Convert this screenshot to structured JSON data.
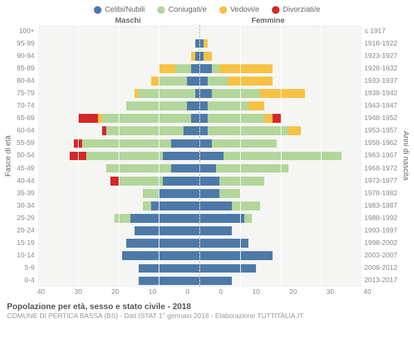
{
  "chart": {
    "type": "population-pyramid",
    "background_color": "#f5f5f3",
    "grid_color": "#ffffff",
    "axis_color": "#888888",
    "center_line_color": "#aaaaaa",
    "legend": [
      {
        "label": "Celibi/Nubili",
        "color": "#4d79a8"
      },
      {
        "label": "Coniugati/e",
        "color": "#b3d69b"
      },
      {
        "label": "Vedovi/e",
        "color": "#f6c244"
      },
      {
        "label": "Divorziati/e",
        "color": "#d62728"
      }
    ],
    "header_left": "Maschi",
    "header_right": "Femmine",
    "y_left_label": "Fasce di età",
    "y_right_label": "Anni di nascita",
    "age_groups": [
      "100+",
      "95-99",
      "90-94",
      "85-89",
      "80-84",
      "75-79",
      "70-74",
      "65-69",
      "60-64",
      "55-59",
      "50-54",
      "45-49",
      "40-44",
      "35-39",
      "30-34",
      "25-29",
      "20-24",
      "15-19",
      "10-14",
      "5-9",
      "0-4"
    ],
    "birth_years": [
      "≤ 1917",
      "1918-1922",
      "1923-1927",
      "1928-1932",
      "1933-1937",
      "1938-1942",
      "1943-1947",
      "1948-1952",
      "1953-1957",
      "1958-1962",
      "1963-1967",
      "1968-1972",
      "1973-1977",
      "1978-1982",
      "1983-1987",
      "1988-1992",
      "1993-1997",
      "1998-2002",
      "2003-2007",
      "2008-2012",
      "2013-2017"
    ],
    "x_max": 40,
    "x_ticks": [
      40,
      30,
      20,
      10,
      0,
      0,
      10,
      20,
      30,
      40
    ],
    "bars": {
      "male": [
        {
          "c": 0,
          "m": 0,
          "w": 0,
          "d": 0
        },
        {
          "c": 1,
          "m": 0,
          "w": 0,
          "d": 0
        },
        {
          "c": 1,
          "m": 0,
          "w": 1,
          "d": 0
        },
        {
          "c": 2,
          "m": 4,
          "w": 4,
          "d": 0
        },
        {
          "c": 3,
          "m": 7,
          "w": 2,
          "d": 0
        },
        {
          "c": 1,
          "m": 14,
          "w": 1,
          "d": 0
        },
        {
          "c": 3,
          "m": 15,
          "w": 0,
          "d": 0
        },
        {
          "c": 2,
          "m": 22,
          "w": 1,
          "d": 5
        },
        {
          "c": 4,
          "m": 19,
          "w": 0,
          "d": 1
        },
        {
          "c": 7,
          "m": 22,
          "w": 0,
          "d": 2
        },
        {
          "c": 9,
          "m": 19,
          "w": 0,
          "d": 4
        },
        {
          "c": 7,
          "m": 16,
          "w": 0,
          "d": 0
        },
        {
          "c": 9,
          "m": 11,
          "w": 0,
          "d": 2
        },
        {
          "c": 10,
          "m": 4,
          "w": 0,
          "d": 0
        },
        {
          "c": 12,
          "m": 2,
          "w": 0,
          "d": 0
        },
        {
          "c": 17,
          "m": 4,
          "w": 0,
          "d": 0
        },
        {
          "c": 16,
          "m": 0,
          "w": 0,
          "d": 0
        },
        {
          "c": 18,
          "m": 0,
          "w": 0,
          "d": 0
        },
        {
          "c": 19,
          "m": 0,
          "w": 0,
          "d": 0
        },
        {
          "c": 15,
          "m": 0,
          "w": 0,
          "d": 0
        },
        {
          "c": 15,
          "m": 0,
          "w": 0,
          "d": 0
        }
      ],
      "female": [
        {
          "c": 0,
          "m": 0,
          "w": 0,
          "d": 0
        },
        {
          "c": 1,
          "m": 0,
          "w": 1,
          "d": 0
        },
        {
          "c": 1,
          "m": 0,
          "w": 2,
          "d": 0
        },
        {
          "c": 3,
          "m": 2,
          "w": 13,
          "d": 0
        },
        {
          "c": 2,
          "m": 5,
          "w": 11,
          "d": 0
        },
        {
          "c": 3,
          "m": 12,
          "w": 11,
          "d": 0
        },
        {
          "c": 2,
          "m": 10,
          "w": 4,
          "d": 0
        },
        {
          "c": 2,
          "m": 14,
          "w": 2,
          "d": 2
        },
        {
          "c": 2,
          "m": 20,
          "w": 3,
          "d": 0
        },
        {
          "c": 3,
          "m": 16,
          "w": 0,
          "d": 0
        },
        {
          "c": 6,
          "m": 29,
          "w": 0,
          "d": 0
        },
        {
          "c": 4,
          "m": 18,
          "w": 0,
          "d": 0
        },
        {
          "c": 5,
          "m": 11,
          "w": 0,
          "d": 0
        },
        {
          "c": 5,
          "m": 5,
          "w": 0,
          "d": 0
        },
        {
          "c": 8,
          "m": 7,
          "w": 0,
          "d": 0
        },
        {
          "c": 11,
          "m": 2,
          "w": 0,
          "d": 0
        },
        {
          "c": 8,
          "m": 0,
          "w": 0,
          "d": 0
        },
        {
          "c": 12,
          "m": 0,
          "w": 0,
          "d": 0
        },
        {
          "c": 18,
          "m": 0,
          "w": 0,
          "d": 0
        },
        {
          "c": 14,
          "m": 0,
          "w": 0,
          "d": 0
        },
        {
          "c": 8,
          "m": 0,
          "w": 0,
          "d": 0
        }
      ]
    },
    "title": "Popolazione per età, sesso e stato civile - 2018",
    "subtitle": "COMUNE DI PERTICA BASSA (BS) - Dati ISTAT 1° gennaio 2018 - Elaborazione TUTTITALIA.IT",
    "title_fontsize": 12,
    "subtitle_fontsize": 10,
    "label_fontsize": 10
  }
}
